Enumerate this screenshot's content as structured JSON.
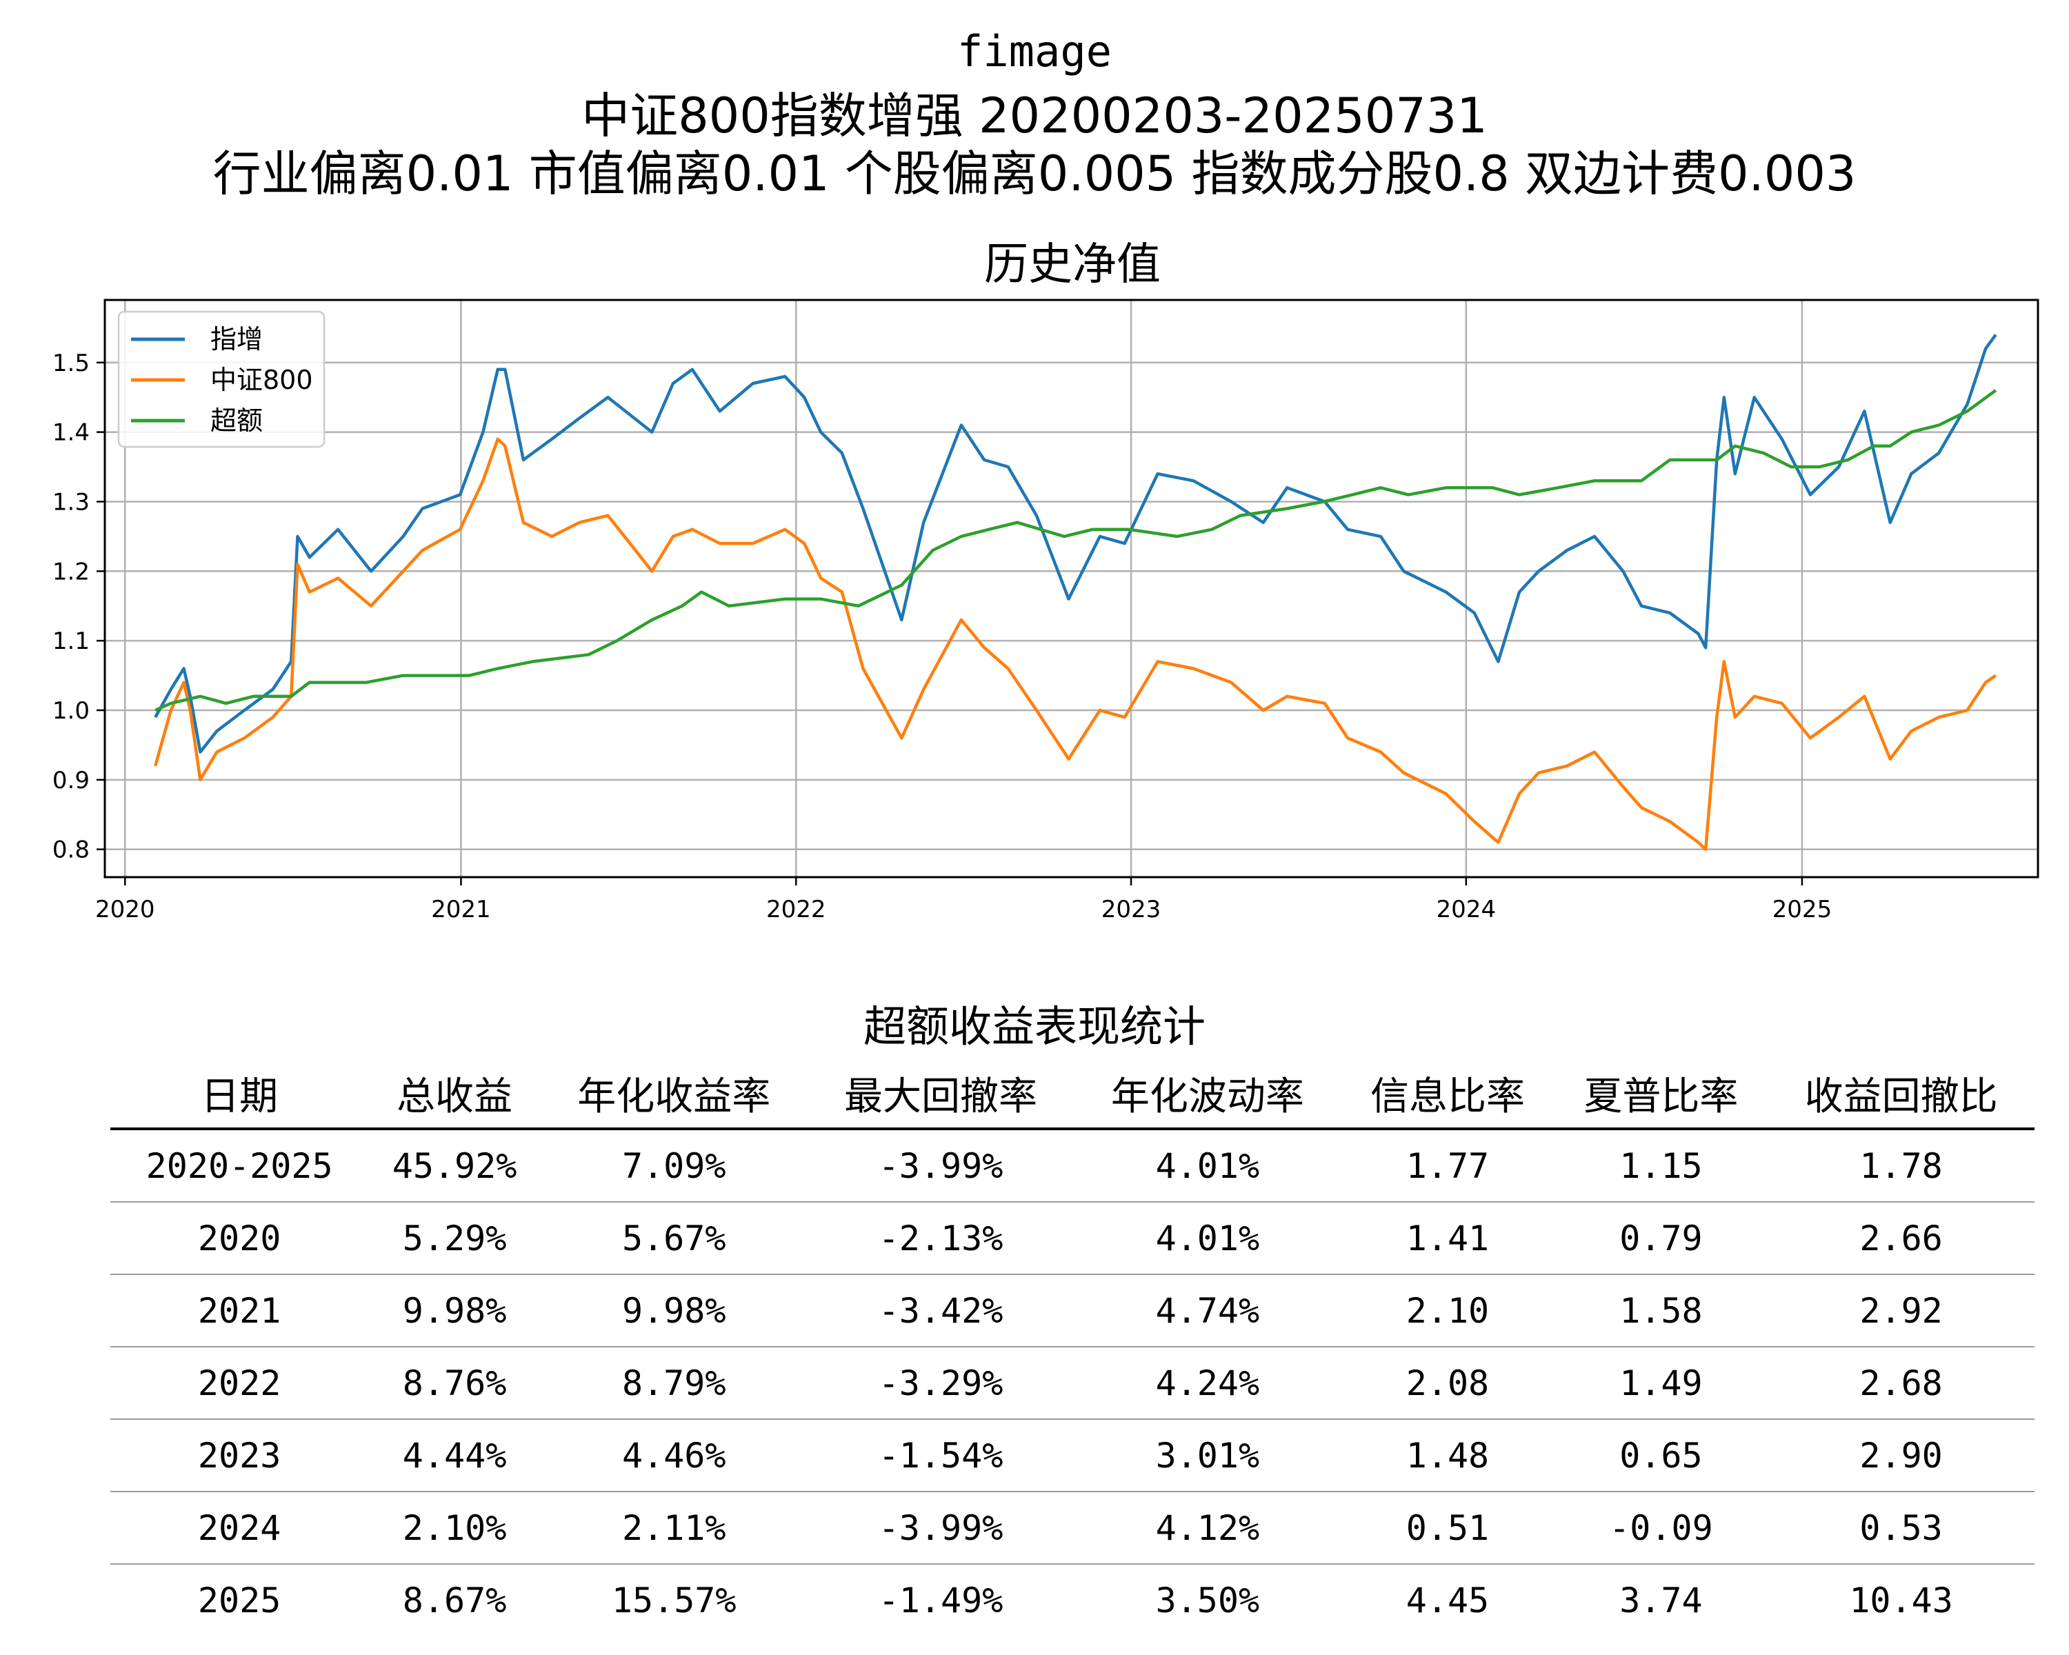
{
  "titles": {
    "line1": "fimage",
    "line2": "中证800指数增强  20200203-20250731",
    "line3": "行业偏离0.01  市值偏离0.01  个股偏离0.005  指数成分股0.8  双边计费0.003"
  },
  "chart_data": {
    "type": "line",
    "title": "历史净值",
    "xlabel": "",
    "ylabel": "",
    "x_ticks": [
      "2020",
      "2021",
      "2022",
      "2023",
      "2024",
      "2025"
    ],
    "y_ticks": [
      "0.8",
      "0.9",
      "1.0",
      "1.1",
      "1.2",
      "1.3",
      "1.4",
      "1.5"
    ],
    "xlim": [
      "2019-12-10",
      "2025-09-15"
    ],
    "ylim": [
      0.76,
      1.59
    ],
    "grid": true,
    "legend": "top-left",
    "series": [
      {
        "name": "指增",
        "color": "#1f77b4",
        "points": [
          [
            "2020-02-03",
            0.99
          ],
          [
            "2020-02-20",
            1.03
          ],
          [
            "2020-03-05",
            1.06
          ],
          [
            "2020-03-12",
            1.02
          ],
          [
            "2020-03-23",
            0.94
          ],
          [
            "2020-04-10",
            0.97
          ],
          [
            "2020-05-10",
            1.0
          ],
          [
            "2020-06-10",
            1.03
          ],
          [
            "2020-06-30",
            1.07
          ],
          [
            "2020-07-07",
            1.25
          ],
          [
            "2020-07-20",
            1.22
          ],
          [
            "2020-08-20",
            1.26
          ],
          [
            "2020-09-25",
            1.2
          ],
          [
            "2020-10-30",
            1.25
          ],
          [
            "2020-11-20",
            1.29
          ],
          [
            "2020-12-31",
            1.31
          ],
          [
            "2021-01-25",
            1.4
          ],
          [
            "2021-02-10",
            1.49
          ],
          [
            "2021-02-18",
            1.49
          ],
          [
            "2021-03-10",
            1.36
          ],
          [
            "2021-04-10",
            1.39
          ],
          [
            "2021-05-10",
            1.42
          ],
          [
            "2021-06-10",
            1.45
          ],
          [
            "2021-07-28",
            1.4
          ],
          [
            "2021-08-20",
            1.47
          ],
          [
            "2021-09-10",
            1.49
          ],
          [
            "2021-10-10",
            1.43
          ],
          [
            "2021-11-15",
            1.47
          ],
          [
            "2021-12-20",
            1.48
          ],
          [
            "2022-01-10",
            1.45
          ],
          [
            "2022-01-28",
            1.4
          ],
          [
            "2022-02-20",
            1.37
          ],
          [
            "2022-03-15",
            1.29
          ],
          [
            "2022-04-26",
            1.13
          ],
          [
            "2022-05-20",
            1.27
          ],
          [
            "2022-06-30",
            1.41
          ],
          [
            "2022-07-25",
            1.36
          ],
          [
            "2022-08-20",
            1.35
          ],
          [
            "2022-09-20",
            1.28
          ],
          [
            "2022-10-25",
            1.16
          ],
          [
            "2022-11-28",
            1.25
          ],
          [
            "2022-12-25",
            1.24
          ],
          [
            "2023-01-30",
            1.34
          ],
          [
            "2023-03-10",
            1.33
          ],
          [
            "2023-04-20",
            1.3
          ],
          [
            "2023-05-25",
            1.27
          ],
          [
            "2023-06-20",
            1.32
          ],
          [
            "2023-07-31",
            1.3
          ],
          [
            "2023-08-25",
            1.26
          ],
          [
            "2023-09-30",
            1.25
          ],
          [
            "2023-10-25",
            1.2
          ],
          [
            "2023-12-10",
            1.17
          ],
          [
            "2024-01-10",
            1.14
          ],
          [
            "2024-02-05",
            1.07
          ],
          [
            "2024-02-28",
            1.17
          ],
          [
            "2024-03-20",
            1.2
          ],
          [
            "2024-04-20",
            1.23
          ],
          [
            "2024-05-20",
            1.25
          ],
          [
            "2024-06-20",
            1.2
          ],
          [
            "2024-07-10",
            1.15
          ],
          [
            "2024-08-10",
            1.14
          ],
          [
            "2024-09-10",
            1.11
          ],
          [
            "2024-09-18",
            1.09
          ],
          [
            "2024-09-30",
            1.36
          ],
          [
            "2024-10-08",
            1.45
          ],
          [
            "2024-10-20",
            1.34
          ],
          [
            "2024-11-10",
            1.45
          ],
          [
            "2024-12-10",
            1.39
          ],
          [
            "2025-01-10",
            1.31
          ],
          [
            "2025-02-10",
            1.35
          ],
          [
            "2025-03-10",
            1.43
          ],
          [
            "2025-04-07",
            1.27
          ],
          [
            "2025-04-30",
            1.34
          ],
          [
            "2025-05-30",
            1.37
          ],
          [
            "2025-06-30",
            1.44
          ],
          [
            "2025-07-20",
            1.52
          ],
          [
            "2025-07-31",
            1.54
          ]
        ]
      },
      {
        "name": "中证800",
        "color": "#ff7f0e",
        "points": [
          [
            "2020-02-03",
            0.92
          ],
          [
            "2020-02-20",
            1.0
          ],
          [
            "2020-03-05",
            1.04
          ],
          [
            "2020-03-12",
            1.0
          ],
          [
            "2020-03-23",
            0.9
          ],
          [
            "2020-04-10",
            0.94
          ],
          [
            "2020-05-10",
            0.96
          ],
          [
            "2020-06-10",
            0.99
          ],
          [
            "2020-06-30",
            1.02
          ],
          [
            "2020-07-07",
            1.21
          ],
          [
            "2020-07-20",
            1.17
          ],
          [
            "2020-08-20",
            1.19
          ],
          [
            "2020-09-25",
            1.15
          ],
          [
            "2020-10-30",
            1.2
          ],
          [
            "2020-11-20",
            1.23
          ],
          [
            "2020-12-31",
            1.26
          ],
          [
            "2021-01-25",
            1.33
          ],
          [
            "2021-02-10",
            1.39
          ],
          [
            "2021-02-18",
            1.38
          ],
          [
            "2021-03-10",
            1.27
          ],
          [
            "2021-04-10",
            1.25
          ],
          [
            "2021-05-10",
            1.27
          ],
          [
            "2021-06-10",
            1.28
          ],
          [
            "2021-07-28",
            1.2
          ],
          [
            "2021-08-20",
            1.25
          ],
          [
            "2021-09-10",
            1.26
          ],
          [
            "2021-10-10",
            1.24
          ],
          [
            "2021-11-15",
            1.24
          ],
          [
            "2021-12-20",
            1.26
          ],
          [
            "2022-01-10",
            1.24
          ],
          [
            "2022-01-28",
            1.19
          ],
          [
            "2022-02-20",
            1.17
          ],
          [
            "2022-03-15",
            1.06
          ],
          [
            "2022-04-26",
            0.96
          ],
          [
            "2022-05-20",
            1.03
          ],
          [
            "2022-06-30",
            1.13
          ],
          [
            "2022-07-25",
            1.09
          ],
          [
            "2022-08-20",
            1.06
          ],
          [
            "2022-09-20",
            1.0
          ],
          [
            "2022-10-25",
            0.93
          ],
          [
            "2022-11-28",
            1.0
          ],
          [
            "2022-12-25",
            0.99
          ],
          [
            "2023-01-30",
            1.07
          ],
          [
            "2023-03-10",
            1.06
          ],
          [
            "2023-04-20",
            1.04
          ],
          [
            "2023-05-25",
            1.0
          ],
          [
            "2023-06-20",
            1.02
          ],
          [
            "2023-07-31",
            1.01
          ],
          [
            "2023-08-25",
            0.96
          ],
          [
            "2023-09-30",
            0.94
          ],
          [
            "2023-10-25",
            0.91
          ],
          [
            "2023-12-10",
            0.88
          ],
          [
            "2024-01-10",
            0.84
          ],
          [
            "2024-02-05",
            0.81
          ],
          [
            "2024-02-28",
            0.88
          ],
          [
            "2024-03-20",
            0.91
          ],
          [
            "2024-04-20",
            0.92
          ],
          [
            "2024-05-20",
            0.94
          ],
          [
            "2024-06-20",
            0.89
          ],
          [
            "2024-07-10",
            0.86
          ],
          [
            "2024-08-10",
            0.84
          ],
          [
            "2024-09-10",
            0.81
          ],
          [
            "2024-09-18",
            0.8
          ],
          [
            "2024-09-30",
            0.99
          ],
          [
            "2024-10-08",
            1.07
          ],
          [
            "2024-10-20",
            0.99
          ],
          [
            "2024-11-10",
            1.02
          ],
          [
            "2024-12-10",
            1.01
          ],
          [
            "2025-01-10",
            0.96
          ],
          [
            "2025-02-10",
            0.99
          ],
          [
            "2025-03-10",
            1.02
          ],
          [
            "2025-04-07",
            0.93
          ],
          [
            "2025-04-30",
            0.97
          ],
          [
            "2025-05-30",
            0.99
          ],
          [
            "2025-06-30",
            1.0
          ],
          [
            "2025-07-20",
            1.04
          ],
          [
            "2025-07-31",
            1.05
          ]
        ]
      },
      {
        "name": "超额",
        "color": "#2ca02c",
        "points": [
          [
            "2020-02-03",
            1.0
          ],
          [
            "2020-02-20",
            1.01
          ],
          [
            "2020-03-23",
            1.02
          ],
          [
            "2020-04-20",
            1.01
          ],
          [
            "2020-05-20",
            1.02
          ],
          [
            "2020-06-30",
            1.02
          ],
          [
            "2020-07-20",
            1.04
          ],
          [
            "2020-09-20",
            1.04
          ],
          [
            "2020-10-30",
            1.05
          ],
          [
            "2020-12-10",
            1.05
          ],
          [
            "2021-01-10",
            1.05
          ],
          [
            "2021-02-10",
            1.06
          ],
          [
            "2021-03-20",
            1.07
          ],
          [
            "2021-05-20",
            1.08
          ],
          [
            "2021-06-20",
            1.1
          ],
          [
            "2021-07-28",
            1.13
          ],
          [
            "2021-08-30",
            1.15
          ],
          [
            "2021-09-20",
            1.17
          ],
          [
            "2021-10-20",
            1.15
          ],
          [
            "2021-12-20",
            1.16
          ],
          [
            "2022-01-28",
            1.16
          ],
          [
            "2022-03-10",
            1.15
          ],
          [
            "2022-04-26",
            1.18
          ],
          [
            "2022-05-30",
            1.23
          ],
          [
            "2022-06-30",
            1.25
          ],
          [
            "2022-07-30",
            1.26
          ],
          [
            "2022-08-30",
            1.27
          ],
          [
            "2022-10-20",
            1.25
          ],
          [
            "2022-11-20",
            1.26
          ],
          [
            "2022-12-30",
            1.26
          ],
          [
            "2023-02-20",
            1.25
          ],
          [
            "2023-03-30",
            1.26
          ],
          [
            "2023-04-30",
            1.28
          ],
          [
            "2023-06-20",
            1.29
          ],
          [
            "2023-07-30",
            1.3
          ],
          [
            "2023-08-30",
            1.31
          ],
          [
            "2023-09-30",
            1.32
          ],
          [
            "2023-10-30",
            1.31
          ],
          [
            "2023-12-10",
            1.32
          ],
          [
            "2024-01-30",
            1.32
          ],
          [
            "2024-02-28",
            1.31
          ],
          [
            "2024-04-10",
            1.32
          ],
          [
            "2024-05-20",
            1.33
          ],
          [
            "2024-07-10",
            1.33
          ],
          [
            "2024-08-10",
            1.36
          ],
          [
            "2024-09-10",
            1.36
          ],
          [
            "2024-09-30",
            1.36
          ],
          [
            "2024-10-20",
            1.38
          ],
          [
            "2024-11-20",
            1.37
          ],
          [
            "2024-12-20",
            1.35
          ],
          [
            "2025-01-20",
            1.35
          ],
          [
            "2025-02-20",
            1.36
          ],
          [
            "2025-03-20",
            1.38
          ],
          [
            "2025-04-07",
            1.38
          ],
          [
            "2025-04-30",
            1.4
          ],
          [
            "2025-05-30",
            1.41
          ],
          [
            "2025-06-30",
            1.43
          ],
          [
            "2025-07-31",
            1.46
          ]
        ]
      }
    ]
  },
  "table": {
    "title": "超额收益表现统计",
    "headers": [
      "日期",
      "总收益",
      "年化收益率",
      "最大回撤率",
      "年化波动率",
      "信息比率",
      "夏普比率",
      "收益回撤比"
    ],
    "rows": [
      [
        "2020-2025",
        "45.92%",
        "7.09%",
        "-3.99%",
        "4.01%",
        "1.77",
        "1.15",
        "1.78"
      ],
      [
        "2020",
        "5.29%",
        "5.67%",
        "-2.13%",
        "4.01%",
        "1.41",
        "0.79",
        "2.66"
      ],
      [
        "2021",
        "9.98%",
        "9.98%",
        "-3.42%",
        "4.74%",
        "2.10",
        "1.58",
        "2.92"
      ],
      [
        "2022",
        "8.76%",
        "8.79%",
        "-3.29%",
        "4.24%",
        "2.08",
        "1.49",
        "2.68"
      ],
      [
        "2023",
        "4.44%",
        "4.46%",
        "-1.54%",
        "3.01%",
        "1.48",
        "0.65",
        "2.90"
      ],
      [
        "2024",
        "2.10%",
        "2.11%",
        "-3.99%",
        "4.12%",
        "0.51",
        "-0.09",
        "0.53"
      ],
      [
        "2025",
        "8.67%",
        "15.57%",
        "-1.49%",
        "3.50%",
        "4.45",
        "3.74",
        "10.43"
      ]
    ]
  }
}
